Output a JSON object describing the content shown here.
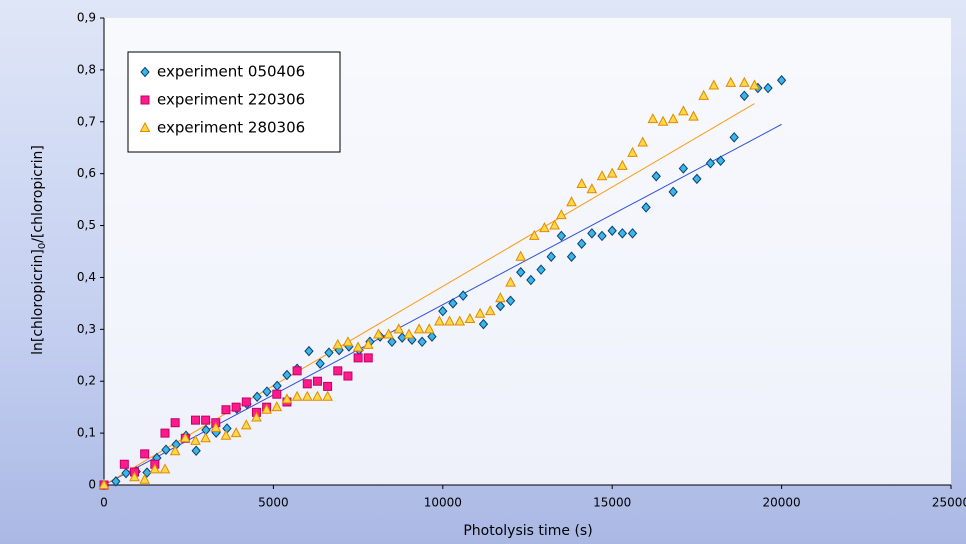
{
  "chart_data": {
    "type": "scatter",
    "x_label": "Photolysis time (s)",
    "y_label": [
      "ln[chloropicrin]",
      "0",
      "/[chloropicrin]"
    ],
    "xlim": [
      0,
      25000
    ],
    "xticks": [
      0,
      5000,
      10000,
      15000,
      20000,
      25000
    ],
    "ylim": [
      0,
      0.9
    ],
    "yticks": [
      0,
      {
        "value": 0.1,
        "label": "0,1"
      },
      {
        "value": 0.2,
        "label": "0,2"
      },
      {
        "value": 0.3,
        "label": "0,3"
      },
      {
        "value": 0.4,
        "label": "0,4"
      },
      {
        "value": 0.5,
        "label": "0,5"
      },
      {
        "value": 0.6,
        "label": "0,6"
      },
      {
        "value": 0.7,
        "label": "0,7"
      },
      {
        "value": 0.8,
        "label": "0,8"
      },
      {
        "value": {
          "value": 0.9,
          "label": "0,9"
        },
        "label": "0,9"
      }
    ],
    "series": [
      {
        "name": "experiment 050406",
        "marker": "diamond",
        "color": "#3bb6e6",
        "edge": "#0b3f73",
        "x": [
          0,
          350,
          650,
          950,
          1270,
          1560,
          1830,
          2130,
          2420,
          2720,
          3010,
          3310,
          3630,
          3920,
          4220,
          4520,
          4810,
          5110,
          5400,
          5700,
          6050,
          6380,
          6640,
          6940,
          7230,
          7530,
          7850,
          8150,
          8500,
          8800,
          9090,
          9390,
          9680,
          10000,
          10300,
          10600,
          11200,
          11700,
          12000,
          12300,
          12600,
          12900,
          13200,
          13500,
          13800,
          14100,
          14400,
          14700,
          15000,
          15300,
          15600,
          16000,
          16300,
          16800,
          17100,
          17500,
          17900,
          18200,
          18600,
          18900,
          19300,
          19600,
          20000
        ],
        "values": [
          0,
          0.007,
          0.023,
          0.026,
          0.024,
          0.052,
          0.068,
          0.078,
          0.095,
          0.066,
          0.106,
          0.101,
          0.109,
          0.147,
          0.156,
          0.17,
          0.18,
          0.191,
          0.212,
          0.224,
          0.258,
          0.234,
          0.255,
          0.26,
          0.267,
          0.26,
          0.276,
          0.286,
          0.276,
          0.284,
          0.28,
          0.276,
          0.286,
          0.335,
          0.35,
          0.365,
          0.31,
          0.345,
          0.355,
          0.41,
          0.395,
          0.415,
          0.44,
          0.48,
          0.44,
          0.465,
          0.485,
          0.48,
          0.49,
          0.485,
          0.485,
          0.535,
          0.595,
          0.565,
          0.61,
          0.59,
          0.62,
          0.625,
          0.67,
          0.75,
          0.765,
          0.765,
          0.78
        ],
        "trend": {
          "x": [
            0,
            20000
          ],
          "values": [
            0,
            0.695
          ],
          "color": "#3050d8"
        }
      },
      {
        "name": "experiment 220306",
        "marker": "square",
        "color": "#ff1a8c",
        "edge": "#c0006a",
        "x": [
          0,
          600,
          900,
          1200,
          1500,
          1800,
          2100,
          2400,
          2700,
          3000,
          3300,
          3600,
          3900,
          4200,
          4500,
          4800,
          5100,
          5400,
          5700,
          6000,
          6300,
          6600,
          6900,
          7200,
          7500,
          7800
        ],
        "values": [
          0,
          0.04,
          0.025,
          0.06,
          0.04,
          0.1,
          0.12,
          0.09,
          0.125,
          0.125,
          0.12,
          0.145,
          0.15,
          0.16,
          0.14,
          0.15,
          0.175,
          0.16,
          0.22,
          0.195,
          0.2,
          0.19,
          0.22,
          0.21,
          0.245,
          0.245
        ]
      },
      {
        "name": "experiment 280306",
        "marker": "triangle",
        "color": "#ffd84a",
        "edge": "#e08a00",
        "x": [
          0,
          900,
          1200,
          1500,
          1800,
          2100,
          2400,
          2700,
          3000,
          3300,
          3600,
          3900,
          4200,
          4500,
          4800,
          5100,
          5400,
          5700,
          6000,
          6300,
          6600,
          6900,
          7200,
          7500,
          7800,
          8100,
          8400,
          8700,
          9000,
          9300,
          9600,
          9900,
          10200,
          10500,
          10800,
          11100,
          11400,
          11700,
          12000,
          12300,
          12700,
          13000,
          13300,
          13500,
          13800,
          14100,
          14400,
          14700,
          15000,
          15300,
          15600,
          15900,
          16200,
          16500,
          16800,
          17100,
          17400,
          17700,
          18000,
          18500,
          18900,
          19200
        ],
        "values": [
          0,
          0.015,
          0.01,
          0.03,
          0.03,
          0.065,
          0.09,
          0.085,
          0.09,
          0.11,
          0.095,
          0.1,
          0.115,
          0.13,
          0.145,
          0.15,
          0.165,
          0.17,
          0.17,
          0.17,
          0.17,
          0.27,
          0.275,
          0.265,
          0.27,
          0.29,
          0.29,
          0.3,
          0.29,
          0.3,
          0.3,
          0.315,
          0.315,
          0.315,
          0.32,
          0.33,
          0.335,
          0.36,
          0.39,
          0.44,
          0.48,
          0.495,
          0.5,
          0.52,
          0.545,
          0.58,
          0.57,
          0.595,
          0.6,
          0.615,
          0.64,
          0.66,
          0.705,
          0.7,
          0.705,
          0.72,
          0.71,
          0.75,
          0.77,
          0.775,
          0.775,
          0.77
        ],
        "trend": {
          "x": [
            0,
            19200
          ],
          "values": [
            0,
            0.735
          ],
          "color": "#ff9a10"
        }
      }
    ]
  }
}
